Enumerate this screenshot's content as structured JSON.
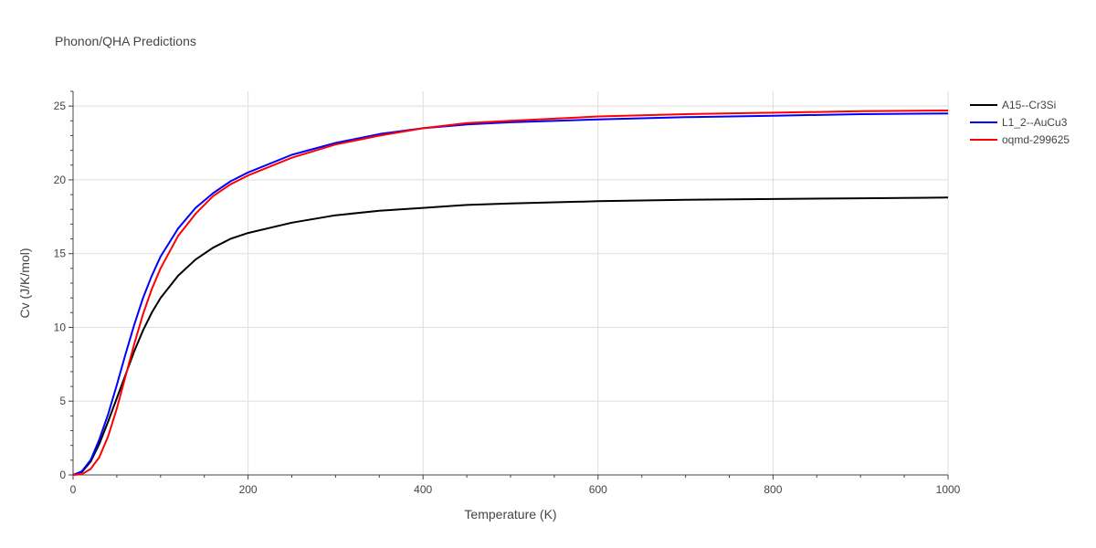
{
  "chart_data": {
    "type": "line",
    "title": "Phonon/QHA Predictions",
    "xlabel": "Temperature (K)",
    "ylabel": "Cv (J/K/mol)",
    "xlim": [
      0,
      1000
    ],
    "ylim": [
      0,
      26
    ],
    "x_ticks": [
      0,
      200,
      400,
      600,
      800,
      1000
    ],
    "y_ticks": [
      0,
      5,
      10,
      15,
      20,
      25
    ],
    "grid": true,
    "legend_position": "top-right",
    "series": [
      {
        "name": "A15--Cr3Si",
        "color": "#000000",
        "points": [
          [
            0,
            0
          ],
          [
            10,
            0.2
          ],
          [
            20,
            0.9
          ],
          [
            30,
            2.1
          ],
          [
            40,
            3.6
          ],
          [
            50,
            5.2
          ],
          [
            60,
            6.8
          ],
          [
            70,
            8.4
          ],
          [
            80,
            9.8
          ],
          [
            90,
            11.0
          ],
          [
            100,
            12.0
          ],
          [
            120,
            13.5
          ],
          [
            140,
            14.6
          ],
          [
            160,
            15.4
          ],
          [
            180,
            16.0
          ],
          [
            200,
            16.4
          ],
          [
            250,
            17.1
          ],
          [
            300,
            17.6
          ],
          [
            350,
            17.9
          ],
          [
            400,
            18.1
          ],
          [
            450,
            18.3
          ],
          [
            500,
            18.4
          ],
          [
            600,
            18.55
          ],
          [
            700,
            18.65
          ],
          [
            800,
            18.7
          ],
          [
            900,
            18.75
          ],
          [
            1000,
            18.8
          ]
        ]
      },
      {
        "name": "L1_2--AuCu3",
        "color": "#0000ff",
        "points": [
          [
            0,
            0
          ],
          [
            10,
            0.25
          ],
          [
            20,
            1.0
          ],
          [
            30,
            2.4
          ],
          [
            40,
            4.1
          ],
          [
            50,
            6.1
          ],
          [
            60,
            8.2
          ],
          [
            70,
            10.2
          ],
          [
            80,
            12.0
          ],
          [
            90,
            13.5
          ],
          [
            100,
            14.8
          ],
          [
            120,
            16.7
          ],
          [
            140,
            18.1
          ],
          [
            160,
            19.1
          ],
          [
            180,
            19.9
          ],
          [
            200,
            20.5
          ],
          [
            250,
            21.7
          ],
          [
            300,
            22.5
          ],
          [
            350,
            23.1
          ],
          [
            400,
            23.5
          ],
          [
            450,
            23.75
          ],
          [
            500,
            23.9
          ],
          [
            600,
            24.1
          ],
          [
            700,
            24.25
          ],
          [
            800,
            24.35
          ],
          [
            900,
            24.45
          ],
          [
            1000,
            24.5
          ]
        ]
      },
      {
        "name": "oqmd-299625",
        "color": "#ff0000",
        "points": [
          [
            0,
            0
          ],
          [
            10,
            0.05
          ],
          [
            20,
            0.4
          ],
          [
            30,
            1.2
          ],
          [
            40,
            2.6
          ],
          [
            50,
            4.5
          ],
          [
            60,
            6.7
          ],
          [
            70,
            8.9
          ],
          [
            80,
            10.9
          ],
          [
            90,
            12.6
          ],
          [
            100,
            14.0
          ],
          [
            120,
            16.2
          ],
          [
            140,
            17.7
          ],
          [
            160,
            18.9
          ],
          [
            180,
            19.7
          ],
          [
            200,
            20.3
          ],
          [
            250,
            21.5
          ],
          [
            300,
            22.4
          ],
          [
            350,
            23.0
          ],
          [
            400,
            23.5
          ],
          [
            450,
            23.85
          ],
          [
            500,
            24.0
          ],
          [
            600,
            24.3
          ],
          [
            700,
            24.45
          ],
          [
            800,
            24.55
          ],
          [
            900,
            24.65
          ],
          [
            1000,
            24.7
          ]
        ]
      }
    ]
  }
}
